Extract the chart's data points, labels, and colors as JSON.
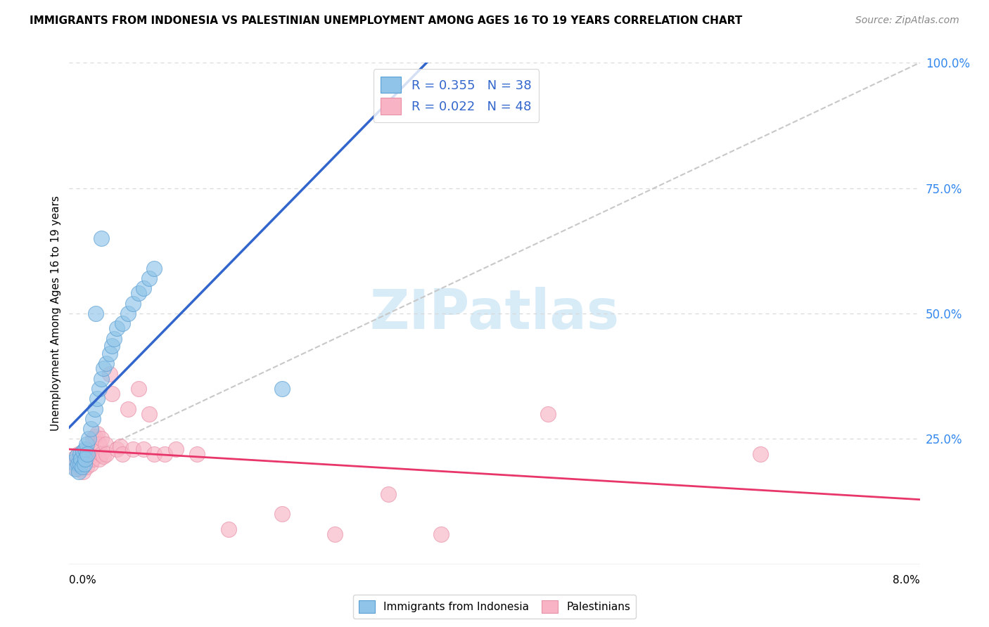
{
  "title": "IMMIGRANTS FROM INDONESIA VS PALESTINIAN UNEMPLOYMENT AMONG AGES 16 TO 19 YEARS CORRELATION CHART",
  "source": "Source: ZipAtlas.com",
  "ylabel": "Unemployment Among Ages 16 to 19 years",
  "xlim": [
    0.0,
    8.0
  ],
  "ylim": [
    0.0,
    100.0
  ],
  "ytick_vals": [
    25,
    50,
    75,
    100
  ],
  "ytick_labels": [
    "25.0%",
    "50.0%",
    "75.0%",
    "100.0%"
  ],
  "legend_r1": "R = 0.355   N = 38",
  "legend_r2": "R = 0.022   N = 48",
  "legend_bottom1": "Immigrants from Indonesia",
  "legend_bottom2": "Palestinians",
  "indonesia_color": "#90c4e8",
  "indonesia_edge": "#5a9fd4",
  "palestinian_color": "#f8b4c4",
  "palestinian_edge": "#e890a8",
  "trend_indonesia_color": "#3366cc",
  "trend_palestinian_color": "#e8366a",
  "ref_line_color": "#c8c8c8",
  "grid_color": "#d8d8d8",
  "watermark_color": "#d4eaf8",
  "indonesia_points": [
    [
      0.04,
      20.5
    ],
    [
      0.06,
      19.0
    ],
    [
      0.07,
      21.5
    ],
    [
      0.08,
      20.0
    ],
    [
      0.09,
      18.5
    ],
    [
      0.1,
      22.0
    ],
    [
      0.1,
      20.0
    ],
    [
      0.11,
      21.0
    ],
    [
      0.12,
      19.5
    ],
    [
      0.13,
      22.5
    ],
    [
      0.14,
      20.0
    ],
    [
      0.15,
      23.0
    ],
    [
      0.15,
      21.0
    ],
    [
      0.16,
      24.0
    ],
    [
      0.17,
      22.0
    ],
    [
      0.18,
      25.0
    ],
    [
      0.2,
      27.0
    ],
    [
      0.22,
      29.0
    ],
    [
      0.24,
      31.0
    ],
    [
      0.26,
      33.0
    ],
    [
      0.28,
      35.0
    ],
    [
      0.3,
      37.0
    ],
    [
      0.32,
      39.0
    ],
    [
      0.35,
      40.0
    ],
    [
      0.38,
      42.0
    ],
    [
      0.4,
      43.5
    ],
    [
      0.42,
      45.0
    ],
    [
      0.45,
      47.0
    ],
    [
      0.5,
      48.0
    ],
    [
      0.55,
      50.0
    ],
    [
      0.6,
      52.0
    ],
    [
      0.65,
      54.0
    ],
    [
      0.7,
      55.0
    ],
    [
      0.75,
      57.0
    ],
    [
      0.8,
      59.0
    ],
    [
      0.25,
      50.0
    ],
    [
      2.0,
      35.0
    ],
    [
      0.3,
      65.0
    ]
  ],
  "palestine_points": [
    [
      0.04,
      21.0
    ],
    [
      0.06,
      20.0
    ],
    [
      0.07,
      19.0
    ],
    [
      0.08,
      22.0
    ],
    [
      0.09,
      20.5
    ],
    [
      0.1,
      19.0
    ],
    [
      0.11,
      21.5
    ],
    [
      0.12,
      20.0
    ],
    [
      0.13,
      18.5
    ],
    [
      0.14,
      22.0
    ],
    [
      0.15,
      21.0
    ],
    [
      0.16,
      19.5
    ],
    [
      0.17,
      22.5
    ],
    [
      0.18,
      21.0
    ],
    [
      0.2,
      20.0
    ],
    [
      0.22,
      21.0
    ],
    [
      0.22,
      25.0
    ],
    [
      0.24,
      22.5
    ],
    [
      0.24,
      25.5
    ],
    [
      0.26,
      26.0
    ],
    [
      0.28,
      21.0
    ],
    [
      0.28,
      24.0
    ],
    [
      0.3,
      22.0
    ],
    [
      0.3,
      25.0
    ],
    [
      0.32,
      21.5
    ],
    [
      0.34,
      24.0
    ],
    [
      0.35,
      22.0
    ],
    [
      0.38,
      38.0
    ],
    [
      0.4,
      34.0
    ],
    [
      0.45,
      23.0
    ],
    [
      0.48,
      23.5
    ],
    [
      0.5,
      22.0
    ],
    [
      0.55,
      31.0
    ],
    [
      0.6,
      23.0
    ],
    [
      0.65,
      35.0
    ],
    [
      0.7,
      23.0
    ],
    [
      0.75,
      30.0
    ],
    [
      0.8,
      22.0
    ],
    [
      0.9,
      22.0
    ],
    [
      1.0,
      23.0
    ],
    [
      1.2,
      22.0
    ],
    [
      1.5,
      7.0
    ],
    [
      2.0,
      10.0
    ],
    [
      2.5,
      6.0
    ],
    [
      3.0,
      14.0
    ],
    [
      3.5,
      6.0
    ],
    [
      4.5,
      30.0
    ],
    [
      6.5,
      22.0
    ]
  ],
  "ref_line": [
    [
      0.0,
      20.0
    ],
    [
      8.0,
      100.0
    ]
  ]
}
